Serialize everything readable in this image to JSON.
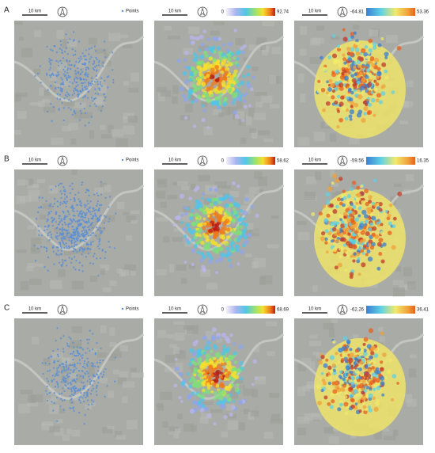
{
  "rows": [
    {
      "label": "A",
      "panels": [
        {
          "scale_label": "10 km",
          "legend_label": "Points"
        },
        {
          "scale_label": "10 km",
          "colorbar": {
            "min": 0,
            "max": 92.74
          }
        },
        {
          "scale_label": "10 km",
          "colorbar": {
            "min": -64.81,
            "max": 53.36
          }
        }
      ]
    },
    {
      "label": "B",
      "panels": [
        {
          "scale_label": "10 km",
          "legend_label": "Points"
        },
        {
          "scale_label": "10 km",
          "colorbar": {
            "min": 0,
            "max": 58.62
          }
        },
        {
          "scale_label": "10 km",
          "colorbar": {
            "min": -59.56,
            "max": 16.35
          }
        }
      ]
    },
    {
      "label": "C",
      "panels": [
        {
          "scale_label": "10 km",
          "legend_label": "Points"
        },
        {
          "scale_label": "10 km",
          "colorbar": {
            "min": 0,
            "max": 68.69
          }
        },
        {
          "scale_label": "10 km",
          "colorbar": {
            "min": -62.26,
            "max": 36.41
          }
        }
      ]
    }
  ]
}
